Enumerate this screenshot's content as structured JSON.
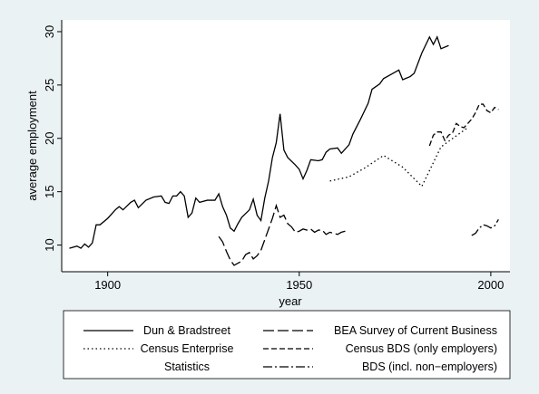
{
  "chart_data": {
    "type": "line",
    "x_label": "year",
    "y_label": "average employment",
    "xlim": [
      1888,
      2005
    ],
    "ylim": [
      7.5,
      31.1
    ],
    "xticks": [
      1900,
      1950,
      2000
    ],
    "yticks": [
      10,
      15,
      20,
      25,
      30
    ],
    "series": [
      {
        "name": "Dun & Bradstreet",
        "color": "#000000",
        "dash": "solid",
        "x": [
          1890,
          1892,
          1893,
          1894,
          1895,
          1896,
          1897,
          1898,
          1900,
          1902,
          1903,
          1904,
          1906,
          1907,
          1908,
          1910,
          1912,
          1914,
          1915,
          1916,
          1917,
          1918,
          1919,
          1920,
          1921,
          1922,
          1923,
          1924,
          1926,
          1928,
          1929,
          1930,
          1931,
          1932,
          1933,
          1934,
          1935,
          1937,
          1938,
          1939,
          1940,
          1941,
          1942,
          1943,
          1944,
          1945,
          1946,
          1947,
          1949,
          1950,
          1951,
          1952,
          1953,
          1955,
          1956,
          1957,
          1958,
          1960,
          1961,
          1963,
          1964,
          1966,
          1968,
          1969,
          1971,
          1972,
          1974,
          1976,
          1977,
          1979,
          1980,
          1982,
          1984,
          1985,
          1986,
          1987,
          1989
        ],
        "values": [
          9.7,
          9.9,
          9.7,
          10.1,
          9.8,
          10.2,
          11.9,
          11.9,
          12.5,
          13.3,
          13.6,
          13.3,
          14.0,
          14.2,
          13.5,
          14.2,
          14.5,
          14.6,
          14.0,
          13.9,
          14.6,
          14.6,
          15.0,
          14.6,
          12.6,
          13.0,
          14.4,
          14.0,
          14.2,
          14.2,
          14.8,
          13.6,
          12.8,
          11.6,
          11.3,
          12.0,
          12.6,
          13.3,
          14.3,
          12.8,
          12.3,
          14.4,
          16.0,
          18.2,
          19.6,
          22.3,
          18.9,
          18.2,
          17.5,
          17.1,
          16.2,
          17.0,
          18.0,
          17.9,
          18.0,
          18.7,
          19.0,
          19.1,
          18.6,
          19.4,
          20.4,
          21.8,
          23.3,
          24.6,
          25.1,
          25.6,
          26.0,
          26.4,
          25.5,
          25.8,
          26.1,
          28.0,
          29.5,
          28.8,
          29.5,
          28.4,
          28.7
        ]
      },
      {
        "name": "BEA Survey of Current Business",
        "color": "#000000",
        "dash": "longdash",
        "x": [
          1929,
          1930,
          1931,
          1932,
          1933,
          1934,
          1935,
          1936,
          1937,
          1938,
          1939,
          1940,
          1941,
          1942,
          1943,
          1944,
          1945,
          1946,
          1947,
          1948,
          1949,
          1950,
          1951,
          1952,
          1953,
          1954,
          1955,
          1956,
          1957,
          1958,
          1959,
          1960,
          1961,
          1962
        ],
        "values": [
          10.8,
          10.3,
          9.4,
          8.6,
          8.1,
          8.3,
          8.5,
          9.1,
          9.3,
          8.7,
          9.0,
          9.5,
          10.5,
          11.5,
          12.5,
          13.7,
          12.6,
          12.8,
          12.0,
          11.7,
          11.2,
          11.3,
          11.5,
          11.4,
          11.5,
          11.2,
          11.4,
          11.4,
          11.0,
          11.2,
          11.1,
          11.0,
          11.2,
          11.3
        ]
      },
      {
        "name": "Census Enterprise Statistics",
        "color": "#000000",
        "dash": "dot",
        "x": [
          1958,
          1963,
          1967,
          1972,
          1977,
          1982,
          1987,
          1992,
          1994
        ],
        "values": [
          16.0,
          16.4,
          17.2,
          18.4,
          17.3,
          15.5,
          19.2,
          20.5,
          21.0
        ]
      },
      {
        "name": "Census BDS (only employers)",
        "color": "#000000",
        "dash": "dash",
        "x": [
          1984,
          1985,
          1986,
          1987,
          1988,
          1989,
          1990,
          1991,
          1992,
          1993,
          1994,
          1995,
          1996,
          1997,
          1998,
          1999,
          2000,
          2001,
          2002
        ],
        "values": [
          19.3,
          20.3,
          20.6,
          20.6,
          19.8,
          20.3,
          20.5,
          21.4,
          21.1,
          21.0,
          21.4,
          21.8,
          22.4,
          23.2,
          23.2,
          22.6,
          22.4,
          22.9,
          22.7
        ]
      },
      {
        "name": "BDS (incl. non−employers)",
        "color": "#000000",
        "dash": "dashdot",
        "x": [
          1995,
          1996,
          1997,
          1998,
          1999,
          2000,
          2001,
          2002
        ],
        "values": [
          10.9,
          11.1,
          11.6,
          11.9,
          11.8,
          11.6,
          11.8,
          12.4
        ]
      }
    ]
  }
}
